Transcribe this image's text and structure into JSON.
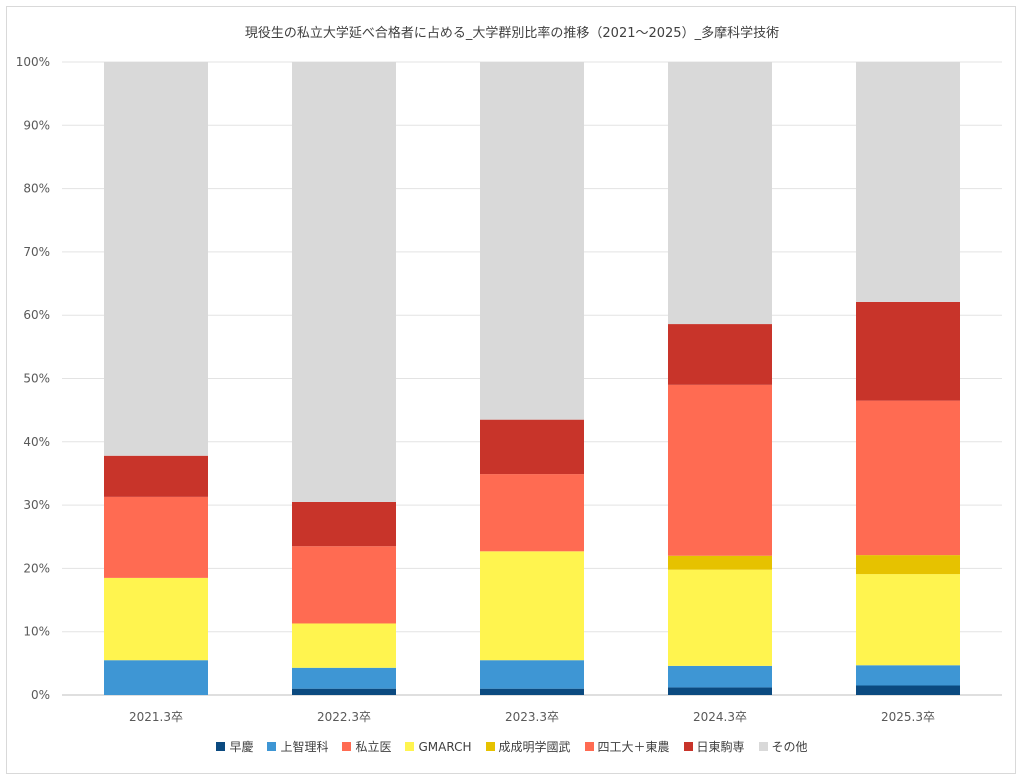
{
  "chart_data": {
    "type": "bar",
    "stacked": true,
    "title": "現役生の私立大学延べ合格者に占める_大学群別比率の推移（2021～2025）_多摩科学技術",
    "categories": [
      "2021.3卒",
      "2022.3卒",
      "2023.3卒",
      "2024.3卒",
      "2025.3卒"
    ],
    "y_ticks": [
      "0%",
      "10%",
      "20%",
      "30%",
      "40%",
      "50%",
      "60%",
      "70%",
      "80%",
      "90%",
      "100%"
    ],
    "ylim": [
      0,
      100
    ],
    "grid": true,
    "legend_position": "bottom",
    "series": [
      {
        "name": "早慶",
        "color": "#0b4a80",
        "values": [
          0.0,
          1.0,
          1.0,
          1.2,
          1.5
        ]
      },
      {
        "name": "上智理科",
        "color": "#3e96d4",
        "values": [
          5.5,
          3.3,
          4.5,
          3.4,
          3.2
        ]
      },
      {
        "name": "私立医",
        "color": "#ff6b52",
        "values": [
          0.0,
          0.0,
          0.0,
          0.0,
          0.0
        ]
      },
      {
        "name": "GMARCH",
        "color": "#fff44f",
        "values": [
          13.0,
          7.0,
          17.2,
          15.2,
          14.4
        ]
      },
      {
        "name": "成成明学國武",
        "color": "#e6c200",
        "values": [
          0.0,
          0.0,
          0.0,
          2.2,
          3.0
        ]
      },
      {
        "name": "四工大＋東農",
        "color": "#ff6b52",
        "values": [
          12.8,
          12.2,
          12.2,
          27.0,
          24.4
        ]
      },
      {
        "name": "日東駒専",
        "color": "#c8342a",
        "values": [
          6.5,
          7.0,
          8.6,
          9.6,
          15.6
        ]
      },
      {
        "name": "その他",
        "color": "#d9d9d9",
        "values": [
          62.2,
          69.5,
          56.5,
          41.4,
          37.9
        ]
      }
    ]
  }
}
